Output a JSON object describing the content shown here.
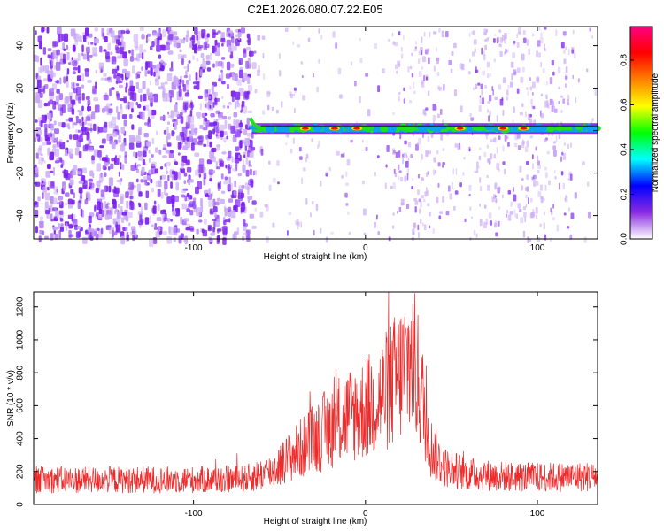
{
  "title": "C2E1.2026.080.07.22.E05",
  "colors": {
    "snr_line": "#ee2a2a",
    "ridge_core": "#e01020",
    "ridge_mid": "#20e020",
    "ridge_outer": "#10a0f0",
    "noise": "#7a1ef0",
    "noise_light": "#c9a8f5",
    "axis": "#000000"
  },
  "chart_data": [
    {
      "type": "heatmap",
      "xlabel": "Height of straight line (km)",
      "ylabel": "Frequency (Hz)",
      "xlim": [
        -193,
        135
      ],
      "ylim": [
        -51,
        49
      ],
      "xticks": [
        -100,
        0,
        100
      ],
      "yticks": [
        -40,
        -20,
        0,
        20,
        40
      ],
      "colorbar": {
        "label": "Normalized spectral amplitude",
        "ticks": [
          "0.0",
          "0.2",
          "0.4",
          "0.6",
          "0.8"
        ],
        "range": [
          0,
          0.95
        ],
        "stops": [
          "#ffffff",
          "#8a2be2",
          "#0000ff",
          "#00ffff",
          "#00ff00",
          "#ffff00",
          "#ff8000",
          "#ff0000",
          "#ff0080"
        ]
      },
      "ridge": {
        "freq_hz": 1,
        "start_km": -66,
        "end_km": 135,
        "hotspots_km": [
          -35,
          -18,
          -5,
          55,
          80,
          92
        ]
      },
      "noise_dense_until_km": -66
    },
    {
      "type": "line",
      "xlabel": "Height of straight line (km)",
      "ylabel": "SNR (10 * v/v)",
      "xlim": [
        -193,
        135
      ],
      "ylim": [
        0,
        1290
      ],
      "xticks": [
        -100,
        0,
        100
      ],
      "yticks": [
        0,
        200,
        400,
        600,
        800,
        1000,
        1200
      ],
      "envelope": {
        "x": [
          -193,
          -150,
          -100,
          -70,
          -55,
          -40,
          -25,
          -10,
          0,
          10,
          20,
          27,
          32,
          38,
          45,
          60,
          80,
          100,
          135
        ],
        "y": [
          150,
          150,
          150,
          155,
          200,
          320,
          440,
          540,
          580,
          660,
          790,
          900,
          700,
          350,
          230,
          185,
          170,
          165,
          170
        ]
      }
    }
  ]
}
